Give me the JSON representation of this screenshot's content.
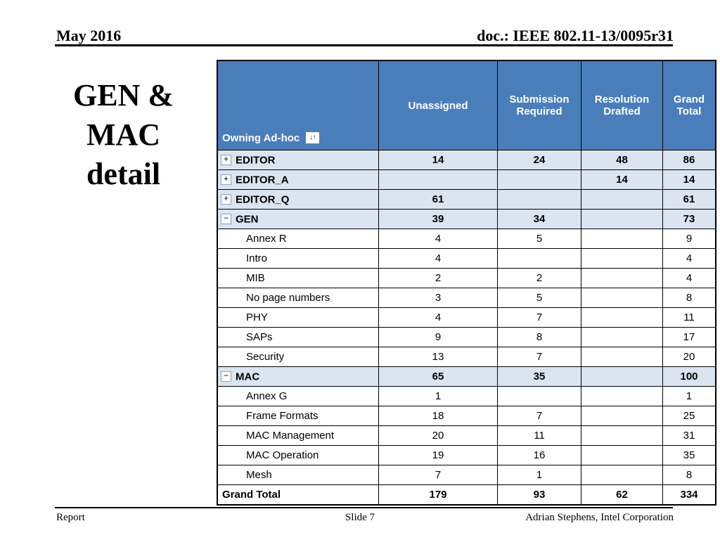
{
  "header": {
    "date": "May 2016",
    "doc_number": "doc.: IEEE 802.11-13/0095r31"
  },
  "title": "GEN & MAC detail",
  "icons": {
    "sort_glyph": "↓↑",
    "plus_glyph": "+",
    "minus_glyph": "−"
  },
  "table": {
    "corner_label": "Owning Ad-hoc",
    "columns": [
      "Unassigned",
      "Submission Required",
      "Resolution Drafted",
      "Grand Total"
    ],
    "rows": [
      {
        "label": "EDITOR",
        "type": "group",
        "icon": "plus",
        "values": [
          "14",
          "24",
          "48",
          "86"
        ]
      },
      {
        "label": "EDITOR_A",
        "type": "group",
        "icon": "plus",
        "values": [
          "",
          "",
          "14",
          "14"
        ]
      },
      {
        "label": "EDITOR_Q",
        "type": "group",
        "icon": "plus",
        "values": [
          "61",
          "",
          "",
          "61"
        ]
      },
      {
        "label": "GEN",
        "type": "group",
        "icon": "minus",
        "values": [
          "39",
          "34",
          "",
          "73"
        ]
      },
      {
        "label": "Annex R",
        "type": "detail",
        "icon": null,
        "values": [
          "4",
          "5",
          "",
          "9"
        ]
      },
      {
        "label": "Intro",
        "type": "detail",
        "icon": null,
        "values": [
          "4",
          "",
          "",
          "4"
        ]
      },
      {
        "label": "MIB",
        "type": "detail",
        "icon": null,
        "values": [
          "2",
          "2",
          "",
          "4"
        ]
      },
      {
        "label": "No page numbers",
        "type": "detail",
        "icon": null,
        "values": [
          "3",
          "5",
          "",
          "8"
        ]
      },
      {
        "label": "PHY",
        "type": "detail",
        "icon": null,
        "values": [
          "4",
          "7",
          "",
          "11"
        ]
      },
      {
        "label": "SAPs",
        "type": "detail",
        "icon": null,
        "values": [
          "9",
          "8",
          "",
          "17"
        ]
      },
      {
        "label": "Security",
        "type": "detail",
        "icon": null,
        "values": [
          "13",
          "7",
          "",
          "20"
        ]
      },
      {
        "label": "MAC",
        "type": "group",
        "icon": "minus",
        "values": [
          "65",
          "35",
          "",
          "100"
        ]
      },
      {
        "label": "Annex G",
        "type": "detail",
        "icon": null,
        "values": [
          "1",
          "",
          "",
          "1"
        ]
      },
      {
        "label": "Frame Formats",
        "type": "detail",
        "icon": null,
        "values": [
          "18",
          "7",
          "",
          "25"
        ]
      },
      {
        "label": "MAC Management",
        "type": "detail",
        "icon": null,
        "values": [
          "20",
          "11",
          "",
          "31"
        ]
      },
      {
        "label": "MAC Operation",
        "type": "detail",
        "icon": null,
        "values": [
          "19",
          "16",
          "",
          "35"
        ]
      },
      {
        "label": "Mesh",
        "type": "detail",
        "icon": null,
        "values": [
          "7",
          "1",
          "",
          "8"
        ]
      },
      {
        "label": "Grand Total",
        "type": "total",
        "icon": null,
        "values": [
          "179",
          "93",
          "62",
          "334"
        ]
      }
    ]
  },
  "footer": {
    "left": "Report",
    "center": "Slide 7",
    "right": "Adrian Stephens, Intel Corporation"
  }
}
